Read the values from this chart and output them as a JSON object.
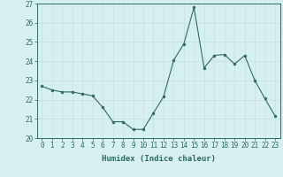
{
  "x": [
    0,
    1,
    2,
    3,
    4,
    5,
    6,
    7,
    8,
    9,
    10,
    11,
    12,
    13,
    14,
    15,
    16,
    17,
    18,
    19,
    20,
    21,
    22,
    23
  ],
  "y": [
    22.7,
    22.5,
    22.4,
    22.4,
    22.3,
    22.2,
    21.6,
    20.85,
    20.85,
    20.45,
    20.45,
    21.3,
    22.15,
    24.05,
    24.9,
    26.8,
    23.65,
    24.3,
    24.35,
    23.85,
    24.3,
    23.0,
    22.05,
    21.15
  ],
  "line_color": "#2e6b5e",
  "marker": "o",
  "marker_size": 2,
  "bg_color": "#d6f0f0",
  "grid_color": "#c8dede",
  "xlabel": "Humidex (Indice chaleur)",
  "ylim": [
    20,
    27
  ],
  "yticks": [
    20,
    21,
    22,
    23,
    24,
    25,
    26,
    27
  ],
  "xticks": [
    0,
    1,
    2,
    3,
    4,
    5,
    6,
    7,
    8,
    9,
    10,
    11,
    12,
    13,
    14,
    15,
    16,
    17,
    18,
    19,
    20,
    21,
    22,
    23
  ],
  "tick_color": "#2e6b5e",
  "label_color": "#2e6b5e",
  "font_size_tick": 5.5,
  "font_size_label": 6.5
}
